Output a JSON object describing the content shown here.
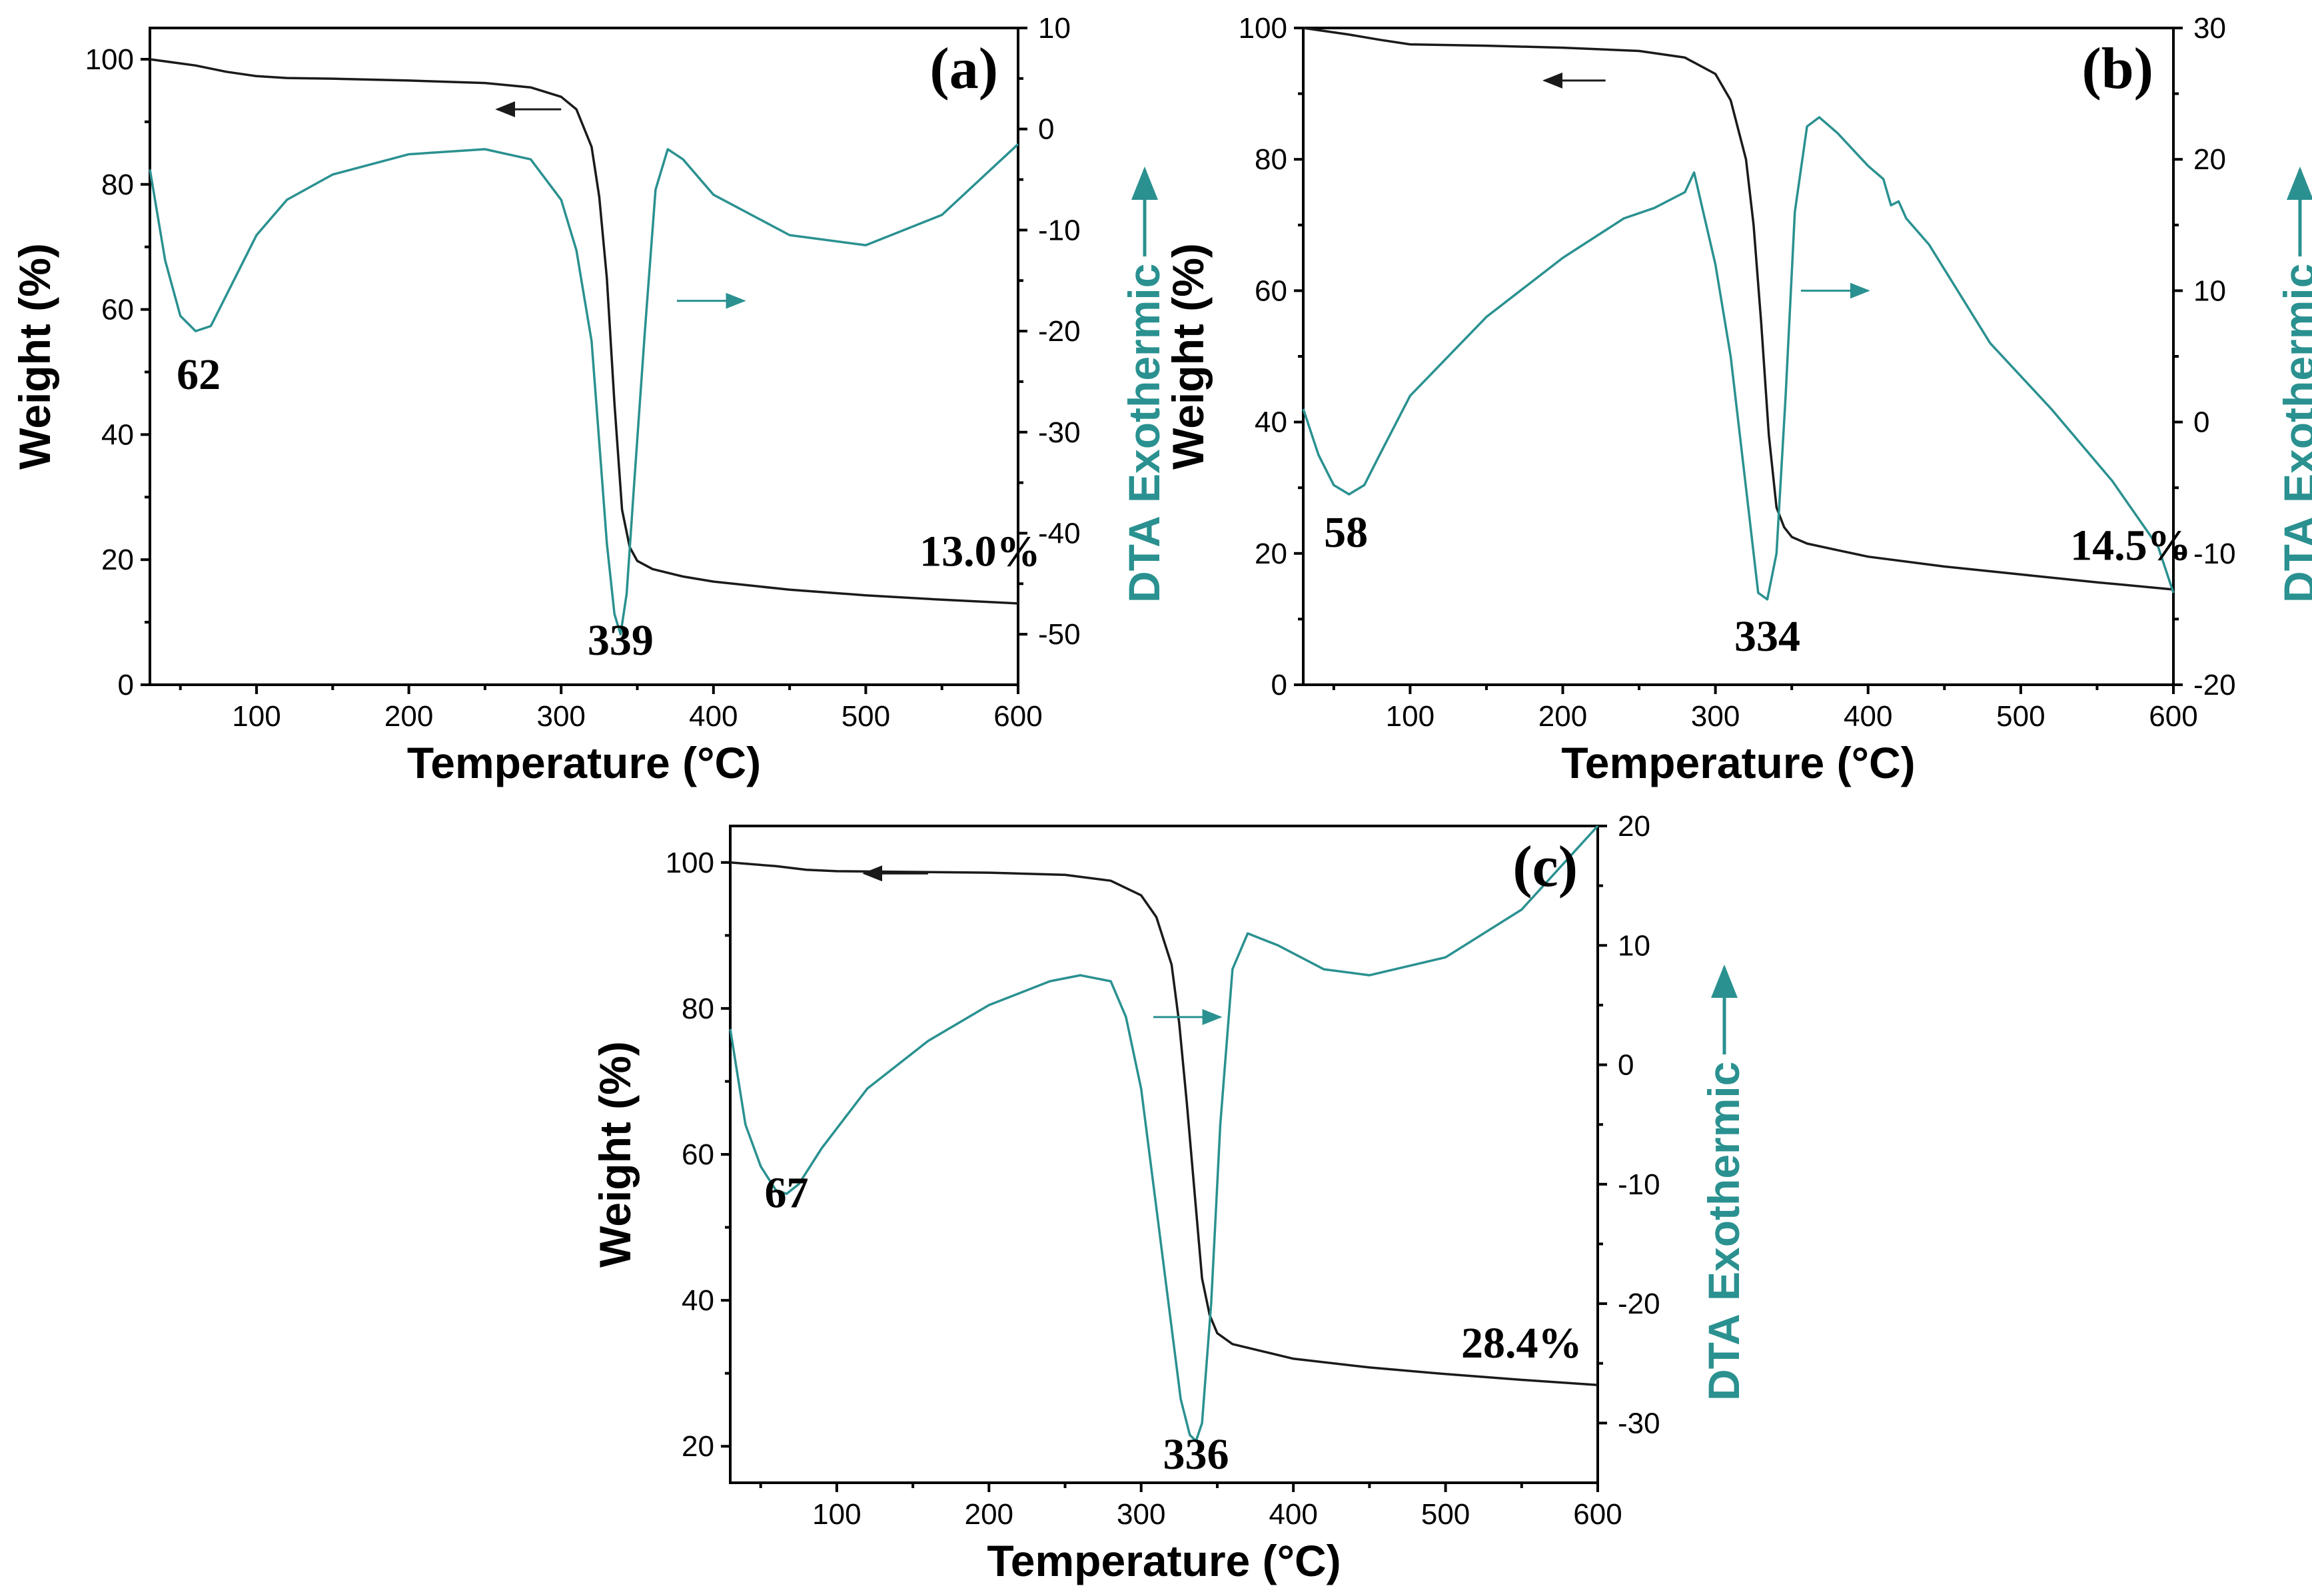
{
  "colors": {
    "weight": "#1a1a1a",
    "dta": "#2a9190",
    "axis": "#000000"
  },
  "chart_data": [
    {
      "id": "a",
      "type": "line",
      "panel_label": "(a)",
      "title": "",
      "xlabel": "Temperature (°C)",
      "ylabel": "Weight (%)",
      "y2label_prefix": "DTA",
      "y2label_suffix": "Exothermic",
      "xlim": [
        30,
        600
      ],
      "ylim": [
        0,
        105
      ],
      "y2lim": [
        -55,
        10
      ],
      "xticks": [
        100,
        200,
        300,
        400,
        500,
        600
      ],
      "yticks": [
        0,
        20,
        40,
        60,
        80,
        100
      ],
      "y2ticks": [
        -50,
        -40,
        -30,
        -20,
        -10,
        0,
        10
      ],
      "grid": false,
      "annotations": {
        "peak1": {
          "text": "62",
          "x": 62,
          "y": -26
        },
        "peak2": {
          "text": "339",
          "x": 339,
          "y": -51.5
        },
        "residue": {
          "text": "13.0%",
          "x": 575,
          "y": 19
        }
      },
      "arrows": {
        "weight_arrow": {
          "from": [
            300,
            92
          ],
          "to": [
            258,
            92
          ],
          "axis": "left"
        },
        "dta_arrow": {
          "from": [
            376,
            -17
          ],
          "to": [
            420,
            -17
          ],
          "axis": "right"
        }
      },
      "series": [
        {
          "name": "Weight",
          "axis": "left",
          "x": [
            30,
            60,
            80,
            100,
            120,
            150,
            200,
            250,
            280,
            300,
            310,
            320,
            325,
            330,
            335,
            340,
            345,
            350,
            360,
            380,
            400,
            450,
            500,
            550,
            600
          ],
          "y": [
            100,
            99,
            98,
            97.3,
            97,
            96.9,
            96.6,
            96.2,
            95.5,
            94,
            92,
            86,
            78,
            65,
            45,
            28,
            22,
            19.8,
            18.5,
            17.3,
            16.5,
            15.2,
            14.3,
            13.6,
            13.0
          ]
        },
        {
          "name": "DTA",
          "axis": "right",
          "x": [
            30,
            40,
            50,
            60,
            70,
            80,
            100,
            120,
            150,
            200,
            250,
            280,
            300,
            310,
            320,
            325,
            330,
            335,
            339,
            343,
            348,
            355,
            362,
            370,
            380,
            400,
            450,
            500,
            550,
            600
          ],
          "y": [
            -4,
            -13,
            -18.5,
            -20,
            -19.5,
            -16.5,
            -10.5,
            -7,
            -4.5,
            -2.5,
            -2,
            -3,
            -7,
            -12,
            -21,
            -31,
            -41,
            -48,
            -50,
            -46,
            -35,
            -20,
            -6,
            -2,
            -3,
            -6.5,
            -10.5,
            -11.5,
            -8.5,
            -1.5
          ]
        }
      ]
    },
    {
      "id": "b",
      "type": "line",
      "panel_label": "(b)",
      "title": "",
      "xlabel": "Temperature (°C)",
      "ylabel": "Weight (%)",
      "y2label_prefix": "DTA",
      "y2label_suffix": "Exothermic",
      "xlim": [
        30,
        600
      ],
      "ylim": [
        0,
        100
      ],
      "y2lim": [
        -20,
        30
      ],
      "xticks": [
        100,
        200,
        300,
        400,
        500,
        600
      ],
      "yticks": [
        0,
        20,
        40,
        60,
        80,
        100
      ],
      "y2ticks": [
        -20,
        -10,
        0,
        10,
        20,
        30
      ],
      "grid": false,
      "annotations": {
        "peak1": {
          "text": "58",
          "x": 58,
          "y": -9.5
        },
        "peak2": {
          "text": "334",
          "x": 334,
          "y": -17
        },
        "residue": {
          "text": "14.5%",
          "x": 572,
          "y": -10.5
        }
      },
      "arrows": {
        "weight_arrow": {
          "from": [
            228,
            92
          ],
          "to": [
            188,
            92
          ],
          "axis": "left"
        },
        "dta_arrow": {
          "from": [
            356,
            10
          ],
          "to": [
            400,
            10
          ],
          "axis": "right"
        }
      },
      "series": [
        {
          "name": "Weight",
          "axis": "left",
          "x": [
            30,
            60,
            80,
            100,
            150,
            200,
            250,
            280,
            300,
            310,
            320,
            325,
            330,
            335,
            340,
            345,
            350,
            360,
            380,
            400,
            450,
            500,
            550,
            600
          ],
          "y": [
            100,
            99,
            98.2,
            97.5,
            97.3,
            97,
            96.5,
            95.5,
            93,
            89,
            80,
            70,
            55,
            38,
            27,
            24,
            22.5,
            21.5,
            20.5,
            19.5,
            18,
            16.8,
            15.6,
            14.5
          ]
        },
        {
          "name": "DTA",
          "axis": "right",
          "x": [
            30,
            40,
            50,
            60,
            70,
            80,
            100,
            150,
            200,
            240,
            260,
            280,
            286,
            292,
            300,
            310,
            320,
            328,
            334,
            340,
            346,
            352,
            360,
            368,
            380,
            400,
            410,
            415,
            420,
            425,
            440,
            480,
            520,
            560,
            590,
            600
          ],
          "y": [
            1,
            -2.5,
            -4.8,
            -5.5,
            -4.8,
            -2.5,
            2,
            8,
            12.5,
            15.5,
            16.3,
            17.5,
            19,
            16,
            12,
            5,
            -5,
            -13,
            -13.5,
            -10,
            2,
            16,
            22.5,
            23.2,
            22,
            19.5,
            18.5,
            16.5,
            16.8,
            15.5,
            13.5,
            6,
            1,
            -4.5,
            -9.5,
            -13
          ]
        }
      ]
    },
    {
      "id": "c",
      "type": "line",
      "panel_label": "(c)",
      "title": "",
      "xlabel": "Temperature (°C)",
      "ylabel": "Weight (%)",
      "y2label_prefix": "DTA",
      "y2label_suffix": "Exothermic",
      "xlim": [
        30,
        600
      ],
      "ylim": [
        15,
        105
      ],
      "y2lim": [
        -35,
        20
      ],
      "xticks": [
        100,
        200,
        300,
        400,
        500,
        600
      ],
      "yticks": [
        20,
        40,
        60,
        80,
        100
      ],
      "y2ticks": [
        -30,
        -20,
        -10,
        0,
        10,
        20
      ],
      "grid": false,
      "annotations": {
        "peak1": {
          "text": "67",
          "x": 67,
          "y": -11.5
        },
        "peak2": {
          "text": "336",
          "x": 336,
          "y": -33.5
        },
        "residue": {
          "text": "28.4%",
          "x": 550,
          "y": -24.5
        }
      },
      "arrows": {
        "weight_arrow": {
          "from": [
            160,
            98.5
          ],
          "to": [
            118,
            98.5
          ],
          "axis": "left"
        },
        "dta_arrow": {
          "from": [
            308,
            4
          ],
          "to": [
            352,
            4
          ],
          "axis": "right"
        }
      },
      "series": [
        {
          "name": "Weight",
          "axis": "left",
          "x": [
            30,
            60,
            80,
            100,
            150,
            200,
            250,
            280,
            300,
            310,
            320,
            325,
            330,
            335,
            340,
            345,
            350,
            360,
            380,
            400,
            450,
            500,
            550,
            600
          ],
          "y": [
            100,
            99.5,
            99,
            98.8,
            98.7,
            98.6,
            98.3,
            97.5,
            95.5,
            92.5,
            86,
            78,
            67,
            55,
            43,
            38,
            35.5,
            34,
            33,
            32,
            30.8,
            29.9,
            29.1,
            28.4
          ]
        },
        {
          "name": "DTA",
          "axis": "right",
          "x": [
            30,
            40,
            50,
            60,
            67,
            75,
            90,
            120,
            160,
            200,
            240,
            260,
            280,
            290,
            300,
            310,
            320,
            326,
            332,
            336,
            340,
            346,
            352,
            360,
            370,
            390,
            420,
            450,
            500,
            550,
            600
          ],
          "y": [
            3,
            -5,
            -8.5,
            -10.5,
            -10.8,
            -10,
            -7,
            -2,
            2,
            5,
            7,
            7.5,
            7,
            4,
            -2,
            -12,
            -22,
            -28,
            -31,
            -31.5,
            -30,
            -20,
            -5,
            8,
            11,
            10,
            8,
            7.5,
            9,
            13,
            20
          ]
        }
      ]
    }
  ]
}
